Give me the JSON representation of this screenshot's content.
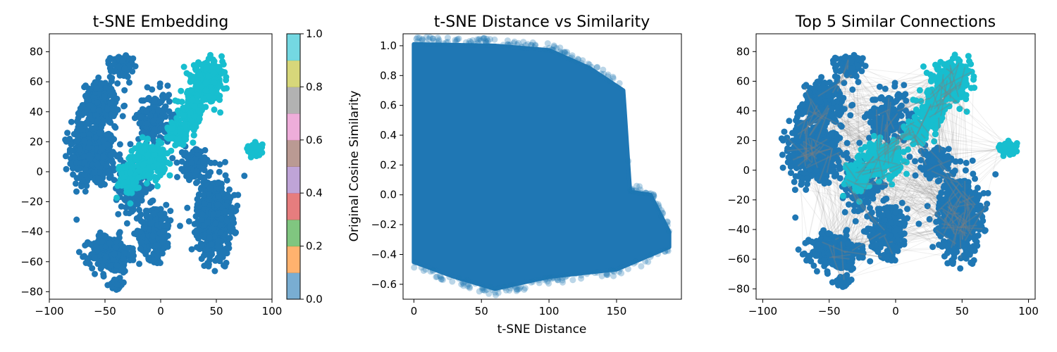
{
  "chart_data": [
    {
      "type": "scatter",
      "title": "t-SNE Embedding",
      "xlabel": "",
      "ylabel": "",
      "xlim": [
        -100,
        100
      ],
      "ylim": [
        -85,
        92
      ],
      "xticks": [
        -100,
        -50,
        0,
        50,
        100
      ],
      "yticks": [
        -80,
        -60,
        -40,
        -20,
        0,
        20,
        40,
        60,
        80
      ],
      "grid": false,
      "colorbar": {
        "colormap": "tab10",
        "range": [
          0.0,
          1.0
        ],
        "ticks": [
          "0.0",
          "0.2",
          "0.4",
          "0.6",
          "0.8",
          "1.0"
        ]
      },
      "series": [
        {
          "color_value": 0.0,
          "color": "#1f77b4",
          "clusters": [
            {
              "center": [
                -60,
                10
              ],
              "spread": [
                20,
                20
              ],
              "count": 380
            },
            {
              "center": [
                -55,
                45
              ],
              "spread": [
                15,
                14
              ],
              "count": 260
            },
            {
              "center": [
                -35,
                70
              ],
              "spread": [
                10,
                7
              ],
              "count": 120
            },
            {
              "center": [
                -45,
                -55
              ],
              "spread": [
                18,
                12
              ],
              "count": 300
            },
            {
              "center": [
                -5,
                -40
              ],
              "spread": [
                14,
                18
              ],
              "count": 220
            },
            {
              "center": [
                -25,
                -10
              ],
              "spread": [
                15,
                15
              ],
              "count": 180
            },
            {
              "center": [
                -5,
                35
              ],
              "spread": [
                15,
                18
              ],
              "count": 200
            },
            {
              "center": [
                48,
                -30
              ],
              "spread": [
                15,
                25
              ],
              "count": 700
            },
            {
              "center": [
                30,
                5
              ],
              "spread": [
                10,
                10
              ],
              "count": 150
            },
            {
              "center": [
                -40,
                -75
              ],
              "spread": [
                6,
                3
              ],
              "count": 60
            },
            {
              "center": [
                -70,
                20
              ],
              "spread": [
                10,
                15
              ],
              "count": 120
            }
          ]
        },
        {
          "color_value": 1.0,
          "color": "#17becf",
          "clusters": [
            {
              "center": [
                42,
                60
              ],
              "spread": [
                14,
                12
              ],
              "count": 320
            },
            {
              "center": [
                28,
                40
              ],
              "spread": [
                10,
                12
              ],
              "count": 160
            },
            {
              "center": [
                -10,
                8
              ],
              "spread": [
                14,
                10
              ],
              "count": 240
            },
            {
              "center": [
                -30,
                -5
              ],
              "spread": [
                8,
                10
              ],
              "count": 100
            },
            {
              "center": [
                85,
                15
              ],
              "spread": [
                6,
                4
              ],
              "count": 70
            },
            {
              "center": [
                15,
                25
              ],
              "spread": [
                8,
                8
              ],
              "count": 90
            }
          ]
        }
      ]
    },
    {
      "type": "scatter",
      "title": "t-SNE Distance vs Similarity",
      "xlabel": "t-SNE Distance",
      "ylabel": "Original Cosine Similarity",
      "xlim": [
        -8,
        198
      ],
      "ylim": [
        -0.7,
        1.08
      ],
      "xticks": [
        0,
        50,
        100,
        150
      ],
      "yticks": [
        -0.6,
        -0.4,
        -0.2,
        0.0,
        0.2,
        0.4,
        0.6,
        0.8,
        1.0
      ],
      "ytick_labels": [
        "−0.6",
        "−0.4",
        "−0.2",
        "0.0",
        "0.2",
        "0.4",
        "0.6",
        "0.8",
        "1.0"
      ],
      "grid": false,
      "color": "#1f77b4",
      "region": {
        "x_range": [
          0,
          189
        ],
        "y_min_curve": [
          [
            0,
            -0.45
          ],
          [
            30,
            -0.55
          ],
          [
            60,
            -0.63
          ],
          [
            100,
            -0.55
          ],
          [
            150,
            -0.5
          ],
          [
            189,
            -0.35
          ]
        ],
        "y_max_curve": [
          [
            0,
            1.01
          ],
          [
            60,
            1.0
          ],
          [
            100,
            0.97
          ],
          [
            130,
            0.85
          ],
          [
            155,
            0.7
          ],
          [
            160,
            0.02
          ],
          [
            175,
            0.0
          ],
          [
            189,
            -0.25
          ]
        ]
      }
    },
    {
      "type": "scatter",
      "title": "Top 5 Similar Connections",
      "xlabel": "",
      "ylabel": "",
      "xlim": [
        -105,
        105
      ],
      "ylim": [
        -87,
        92
      ],
      "xticks": [
        -100,
        -50,
        0,
        50,
        100
      ],
      "yticks": [
        -80,
        -60,
        -40,
        -20,
        0,
        20,
        40,
        60,
        80
      ],
      "grid": false,
      "point_colors": [
        "#1f77b4",
        "#17becf"
      ],
      "connection_color": "#7f7f7f",
      "connections_per_point": 5
    }
  ]
}
